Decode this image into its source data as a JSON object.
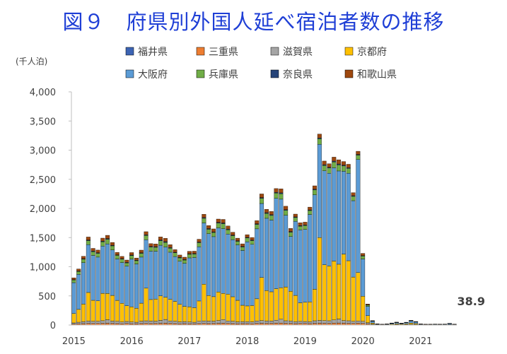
{
  "title": "図９　府県別外国人延べ宿泊者数の推移",
  "chart_data": {
    "type": "bar",
    "stacked": true,
    "ylabel": "(千人泊)",
    "ylim": [
      0,
      4000
    ],
    "yticks": [
      "0",
      "500",
      "1,000",
      "1,500",
      "2,000",
      "2,500",
      "3,000",
      "3,500",
      "4,000"
    ],
    "ytick_values": [
      0,
      500,
      1000,
      1500,
      2000,
      2500,
      3000,
      3500,
      4000
    ],
    "grid": false,
    "legend_position": "top",
    "xtick_labels": [
      "2015",
      "2016",
      "2017",
      "2018",
      "2019",
      "2020",
      "2021"
    ],
    "end_label": "38.9",
    "categories": [
      "2015-01",
      "2015-02",
      "2015-03",
      "2015-04",
      "2015-05",
      "2015-06",
      "2015-07",
      "2015-08",
      "2015-09",
      "2015-10",
      "2015-11",
      "2015-12",
      "2016-01",
      "2016-02",
      "2016-03",
      "2016-04",
      "2016-05",
      "2016-06",
      "2016-07",
      "2016-08",
      "2016-09",
      "2016-10",
      "2016-11",
      "2016-12",
      "2017-01",
      "2017-02",
      "2017-03",
      "2017-04",
      "2017-05",
      "2017-06",
      "2017-07",
      "2017-08",
      "2017-09",
      "2017-10",
      "2017-11",
      "2017-12",
      "2018-01",
      "2018-02",
      "2018-03",
      "2018-04",
      "2018-05",
      "2018-06",
      "2018-07",
      "2018-08",
      "2018-09",
      "2018-10",
      "2018-11",
      "2018-12",
      "2019-01",
      "2019-02",
      "2019-03",
      "2019-04",
      "2019-05",
      "2019-06",
      "2019-07",
      "2019-08",
      "2019-09",
      "2019-10",
      "2019-11",
      "2019-12",
      "2020-01",
      "2020-02",
      "2020-03",
      "2020-04",
      "2020-05",
      "2020-06",
      "2020-07",
      "2020-08",
      "2020-09",
      "2020-10",
      "2020-11",
      "2020-12",
      "2021-01",
      "2021-02",
      "2021-03",
      "2021-04",
      "2021-05",
      "2021-06",
      "2021-07",
      "2021-08"
    ],
    "series": [
      {
        "name": "福井県",
        "color": "#3c64b4",
        "values": [
          2,
          2,
          2,
          3,
          3,
          3,
          3,
          3,
          3,
          3,
          2,
          2,
          2,
          2,
          3,
          3,
          3,
          3,
          3,
          3,
          3,
          3,
          2,
          2,
          2,
          2,
          3,
          3,
          3,
          3,
          3,
          3,
          3,
          3,
          2,
          2,
          2,
          2,
          3,
          3,
          3,
          3,
          3,
          3,
          3,
          3,
          2,
          2,
          2,
          2,
          3,
          3,
          3,
          3,
          3,
          3,
          3,
          3,
          3,
          3,
          3,
          2,
          1,
          0,
          0,
          0,
          0,
          0,
          0,
          0,
          0,
          0,
          0,
          0,
          0,
          0,
          0,
          0,
          0,
          0
        ]
      },
      {
        "name": "三重県",
        "color": "#ed7d31",
        "values": [
          15,
          18,
          22,
          25,
          23,
          24,
          26,
          28,
          25,
          22,
          20,
          24,
          20,
          18,
          22,
          24,
          22,
          23,
          26,
          28,
          24,
          22,
          20,
          22,
          20,
          18,
          22,
          24,
          22,
          23,
          26,
          28,
          24,
          22,
          20,
          22,
          22,
          20,
          25,
          26,
          24,
          25,
          28,
          30,
          26,
          24,
          22,
          24,
          24,
          22,
          26,
          28,
          26,
          26,
          30,
          32,
          28,
          26,
          24,
          28,
          24,
          16,
          6,
          2,
          1,
          1,
          2,
          3,
          2,
          3,
          4,
          3,
          1,
          1,
          1,
          1,
          1,
          1,
          2,
          1
        ]
      },
      {
        "name": "滋賀県",
        "color": "#a5a5a5",
        "values": [
          20,
          28,
          35,
          40,
          38,
          38,
          45,
          60,
          40,
          38,
          30,
          35,
          30,
          28,
          40,
          45,
          42,
          40,
          50,
          65,
          42,
          40,
          32,
          35,
          30,
          28,
          38,
          44,
          42,
          40,
          48,
          62,
          42,
          40,
          32,
          35,
          34,
          32,
          42,
          46,
          44,
          42,
          52,
          66,
          44,
          42,
          34,
          36,
          34,
          32,
          44,
          48,
          46,
          44,
          54,
          68,
          46,
          44,
          36,
          38,
          36,
          22,
          8,
          2,
          1,
          1,
          3,
          5,
          3,
          5,
          8,
          6,
          2,
          1,
          1,
          1,
          1,
          1,
          2,
          1
        ]
      },
      {
        "name": "京都府",
        "color": "#ffc000",
        "values": [
          160,
          220,
          300,
          490,
          360,
          350,
          470,
          450,
          440,
          360,
          320,
          270,
          260,
          240,
          310,
          560,
          370,
          380,
          420,
          380,
          370,
          340,
          300,
          260,
          260,
          250,
          350,
          630,
          440,
          420,
          490,
          450,
          460,
          420,
          370,
          280,
          270,
          280,
          380,
          740,
          520,
          500,
          540,
          540,
          580,
          510,
          450,
          320,
          330,
          340,
          540,
          1420,
          960,
          940,
          1010,
          940,
          1140,
          1030,
          760,
          830,
          430,
          120,
          20,
          5,
          4,
          6,
          10,
          14,
          9,
          14,
          22,
          16,
          5,
          4,
          4,
          4,
          3,
          4,
          6,
          3
        ]
      },
      {
        "name": "大阪府",
        "color": "#5b9bd5",
        "values": [
          530,
          600,
          710,
          820,
          770,
          750,
          810,
          850,
          780,
          710,
          700,
          680,
          820,
          760,
          790,
          830,
          830,
          820,
          870,
          860,
          810,
          770,
          740,
          740,
          840,
          860,
          930,
          1050,
          1060,
          1030,
          1100,
          1110,
          1030,
          980,
          950,
          940,
          1100,
          1050,
          1200,
          1270,
          1240,
          1230,
          1550,
          1520,
          1230,
          940,
          1270,
          1250,
          1250,
          1500,
          1620,
          1600,
          1610,
          1590,
          1600,
          1600,
          1420,
          1500,
          1310,
          1940,
          640,
          160,
          30,
          8,
          6,
          8,
          14,
          20,
          12,
          18,
          36,
          26,
          8,
          6,
          6,
          8,
          8,
          8,
          14,
          8
        ]
      },
      {
        "name": "兵庫県",
        "color": "#70ad47",
        "values": [
          45,
          50,
          60,
          70,
          65,
          65,
          75,
          80,
          70,
          62,
          58,
          55,
          60,
          56,
          65,
          75,
          70,
          68,
          78,
          82,
          70,
          64,
          58,
          56,
          62,
          60,
          70,
          80,
          76,
          72,
          82,
          86,
          76,
          68,
          62,
          60,
          66,
          64,
          76,
          88,
          84,
          80,
          90,
          94,
          84,
          74,
          66,
          64,
          66,
          68,
          84,
          96,
          92,
          90,
          100,
          104,
          92,
          84,
          74,
          76,
          50,
          22,
          6,
          2,
          1,
          2,
          3,
          4,
          3,
          4,
          6,
          5,
          2,
          1,
          1,
          2,
          2,
          2,
          3,
          2
        ]
      },
      {
        "name": "奈良県",
        "color": "#264478",
        "values": [
          8,
          9,
          10,
          12,
          11,
          11,
          12,
          13,
          11,
          10,
          9,
          9,
          9,
          8,
          10,
          12,
          11,
          11,
          12,
          13,
          11,
          10,
          9,
          9,
          9,
          9,
          11,
          13,
          12,
          11,
          13,
          13,
          12,
          11,
          10,
          10,
          10,
          10,
          12,
          14,
          13,
          13,
          14,
          15,
          13,
          12,
          11,
          11,
          11,
          11,
          13,
          15,
          14,
          14,
          15,
          16,
          14,
          13,
          12,
          12,
          8,
          4,
          1,
          0,
          0,
          0,
          1,
          1,
          1,
          1,
          1,
          1,
          0,
          0,
          0,
          0,
          0,
          0,
          1,
          0
        ]
      },
      {
        "name": "和歌山県",
        "color": "#9e480e",
        "values": [
          30,
          35,
          40,
          50,
          45,
          45,
          50,
          55,
          48,
          42,
          38,
          40,
          42,
          38,
          45,
          52,
          48,
          46,
          52,
          56,
          48,
          44,
          40,
          40,
          42,
          40,
          48,
          56,
          52,
          50,
          56,
          60,
          52,
          48,
          44,
          44,
          46,
          44,
          52,
          62,
          58,
          56,
          64,
          68,
          58,
          52,
          48,
          48,
          48,
          48,
          58,
          66,
          62,
          60,
          68,
          72,
          62,
          58,
          52,
          54,
          38,
          14,
          4,
          1,
          1,
          1,
          2,
          3,
          2,
          3,
          4,
          3,
          1,
          1,
          1,
          1,
          1,
          1,
          2,
          1
        ]
      }
    ]
  }
}
